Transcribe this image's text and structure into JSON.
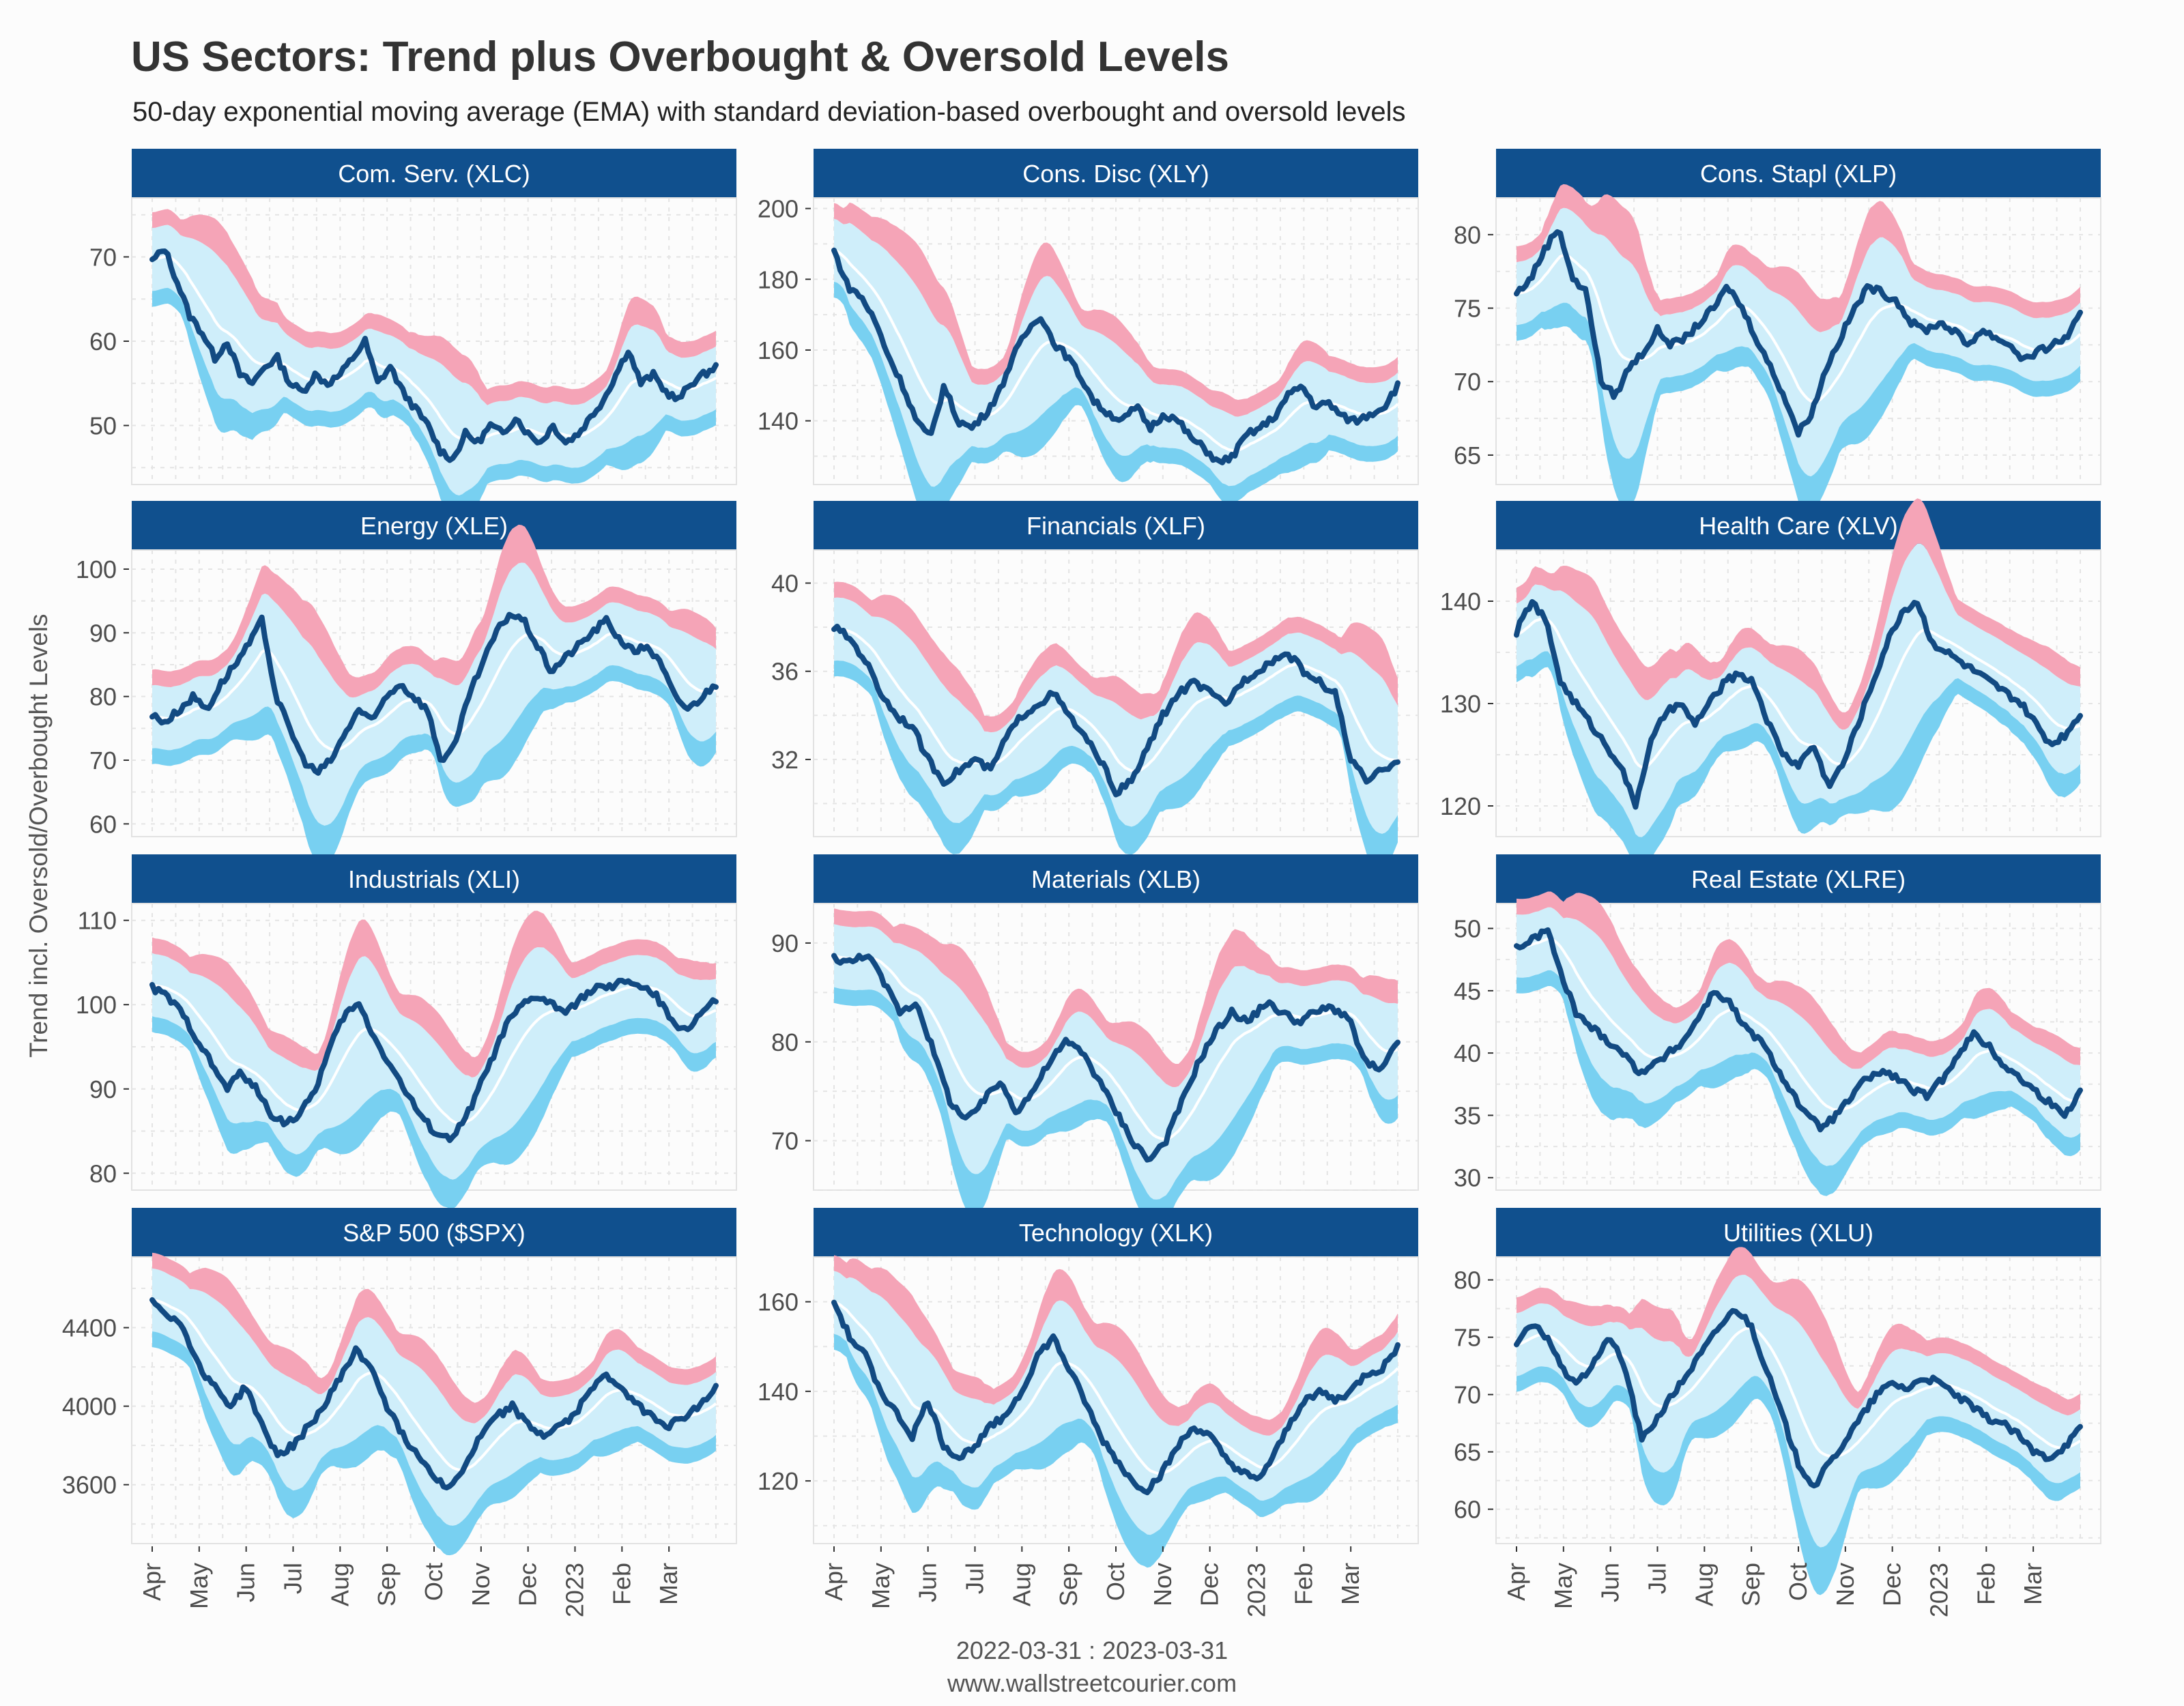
{
  "header": {
    "title": "US Sectors: Trend plus Overbought & Oversold Levels",
    "subtitle": "50-day exponential moving average (EMA) with standard deviation-based overbought and oversold levels",
    "ylabel": "Trend incl. Oversold/Overbought Levels",
    "caption": "2022-03-31 : 2023-03-31",
    "site": "www.wallstreetcourier.com"
  },
  "colors": {
    "strip": "#10508e",
    "price": "#124a82",
    "overbought": "#f5a4b7",
    "band": "#cfeefa",
    "oversold": "#78d0f1",
    "ema": "#ffffff"
  },
  "chart_data": {
    "type": "line",
    "x_months": [
      "Apr",
      "May",
      "Jun",
      "Jul",
      "Aug",
      "Sep",
      "Oct",
      "Nov",
      "Dec",
      "2023",
      "Feb",
      "Mar"
    ],
    "x_range": [
      "2022-03-31",
      "2023-03-31"
    ],
    "panels": [
      {
        "title": "Com. Serv. (XLC)",
        "ylim": [
          43,
          77
        ],
        "yticks": [
          50,
          60,
          70
        ],
        "price": [
          69.5,
          71,
          67,
          63,
          61,
          58,
          60,
          56,
          55,
          57,
          58,
          55,
          54,
          56,
          55,
          56,
          58,
          60,
          55,
          57,
          54,
          52,
          50,
          47,
          46,
          49,
          48,
          50,
          49,
          51,
          49,
          48,
          50,
          48,
          49,
          51,
          53,
          56,
          59,
          55,
          56,
          54,
          53,
          55,
          56,
          57
        ]
      },
      {
        "title": "Cons. Disc (XLY)",
        "ylim": [
          122,
          203
        ],
        "yticks": [
          140,
          160,
          180,
          200
        ],
        "price": [
          188,
          178,
          175,
          168,
          158,
          150,
          140,
          135,
          150,
          140,
          138,
          142,
          148,
          158,
          165,
          170,
          162,
          158,
          152,
          145,
          142,
          140,
          144,
          138,
          142,
          140,
          135,
          132,
          128,
          130,
          136,
          138,
          141,
          147,
          150,
          144,
          145,
          141,
          140,
          142,
          144,
          150
        ]
      },
      {
        "title": "Cons. Stapl (XLP)",
        "ylim": [
          63,
          82.5
        ],
        "yticks": [
          65,
          70,
          75,
          80
        ],
        "price": [
          76,
          77,
          79,
          80.5,
          77,
          76,
          70,
          69,
          71,
          72,
          73.5,
          72.5,
          73,
          74,
          75,
          76.5,
          75,
          73,
          71,
          69,
          66.5,
          68,
          71,
          73,
          75,
          76.5,
          76,
          75.5,
          74,
          73.5,
          74,
          73.5,
          72.5,
          73.5,
          73,
          72.5,
          71.5,
          72,
          72.5,
          73,
          74.5
        ]
      },
      {
        "title": "Energy (XLE)",
        "ylim": [
          58,
          103
        ],
        "yticks": [
          60,
          70,
          80,
          90,
          100
        ],
        "price": [
          77,
          76,
          78,
          80,
          78,
          82,
          85,
          88,
          92,
          80,
          75,
          70,
          68,
          70,
          74,
          78,
          76,
          80,
          82,
          80,
          78,
          70,
          72,
          80,
          85,
          90,
          93,
          92,
          88,
          84,
          86,
          88,
          90,
          92,
          89,
          87,
          88,
          85,
          80,
          78,
          80,
          82
        ]
      },
      {
        "title": "Financials (XLF)",
        "ylim": [
          28.5,
          41.5
        ],
        "yticks": [
          32,
          36,
          40
        ],
        "price": [
          38,
          37.5,
          36.5,
          35,
          34,
          33.5,
          32,
          31,
          31.5,
          32,
          31.5,
          33,
          34,
          34.5,
          35,
          34,
          33,
          32,
          30.5,
          31,
          32.5,
          34,
          35,
          35.5,
          35,
          34.5,
          35.5,
          36,
          36.5,
          36.8,
          36,
          35.5,
          35,
          32,
          31,
          31.5,
          32
        ]
      },
      {
        "title": "Health Care (XLV)",
        "ylim": [
          117,
          145
        ],
        "yticks": [
          120,
          130,
          140
        ],
        "price": [
          137,
          140,
          138,
          132,
          130,
          128,
          126,
          124,
          120,
          126,
          129,
          130,
          128,
          130,
          132,
          133,
          132,
          128,
          125,
          124,
          126,
          122,
          124,
          128,
          132,
          136,
          139,
          140,
          136,
          135,
          134,
          133,
          132,
          131,
          130,
          128,
          126,
          127,
          129
        ]
      },
      {
        "title": "Industrials (XLI)",
        "ylim": [
          78,
          112
        ],
        "yticks": [
          80,
          90,
          100,
          110
        ],
        "price": [
          102,
          101,
          99,
          96,
          93,
          90,
          92,
          90,
          87,
          86,
          87,
          90,
          95,
          99,
          100,
          96,
          93,
          90,
          87,
          85,
          84,
          86,
          90,
          94,
          98,
          100,
          101,
          100,
          99,
          101,
          102,
          102,
          103,
          102,
          101,
          98,
          97,
          99,
          100.5
        ]
      },
      {
        "title": "Materials (XLB)",
        "ylim": [
          65,
          94
        ],
        "yticks": [
          70,
          80,
          90
        ],
        "price": [
          88.5,
          88,
          89,
          86,
          83,
          84,
          79,
          74,
          72,
          74,
          76,
          73,
          75,
          78,
          80,
          79,
          76,
          73,
          70,
          68,
          70,
          74,
          78,
          81,
          83,
          82,
          84,
          83,
          82,
          83,
          83.5,
          82.5,
          78,
          77,
          80
        ]
      },
      {
        "title": "Real Estate (XLRE)",
        "ylim": [
          29,
          52
        ],
        "yticks": [
          30,
          35,
          40,
          45,
          50
        ],
        "price": [
          48.5,
          49,
          50,
          46,
          43,
          42,
          41,
          40,
          38.5,
          39,
          40,
          41,
          43,
          45,
          44,
          42,
          41,
          39,
          37,
          35,
          34,
          35,
          36.5,
          38,
          38.5,
          38,
          37,
          36.5,
          38,
          40,
          41.5,
          40.5,
          39,
          38,
          37,
          36,
          35,
          37
        ]
      },
      {
        "title": "S&P 500 ($SPX)",
        "ylim": [
          3300,
          4760
        ],
        "yticks": [
          3600,
          4000,
          4400
        ],
        "price": [
          4540,
          4470,
          4400,
          4200,
          4100,
          4000,
          4100,
          3900,
          3750,
          3800,
          3900,
          4000,
          4150,
          4280,
          4200,
          4000,
          3850,
          3750,
          3650,
          3580,
          3700,
          3850,
          3950,
          4000,
          3900,
          3850,
          3900,
          3950,
          4100,
          4150,
          4100,
          4000,
          3950,
          3900,
          3950,
          4000,
          4100
        ]
      },
      {
        "title": "Technology (XLK)",
        "ylim": [
          106,
          170
        ],
        "yticks": [
          120,
          140,
          160
        ],
        "price": [
          160,
          152,
          148,
          140,
          135,
          130,
          138,
          128,
          125,
          128,
          132,
          135,
          140,
          148,
          152,
          145,
          138,
          130,
          125,
          120,
          118,
          122,
          128,
          132,
          130,
          125,
          122,
          120,
          125,
          132,
          138,
          140,
          138,
          140,
          144,
          145,
          150
        ]
      },
      {
        "title": "Utilities (XLU)",
        "ylim": [
          57,
          82
        ],
        "yticks": [
          60,
          65,
          70,
          75,
          80
        ],
        "price": [
          74.5,
          76,
          75,
          72,
          71,
          73,
          75,
          72,
          66,
          68,
          70,
          72,
          74,
          76,
          77.5,
          76,
          72,
          68,
          64,
          62,
          64,
          66,
          68,
          70,
          71,
          70.5,
          71.5,
          71,
          70,
          69,
          68,
          67.5,
          66.5,
          65,
          64.5,
          65.5,
          67
        ]
      }
    ]
  }
}
